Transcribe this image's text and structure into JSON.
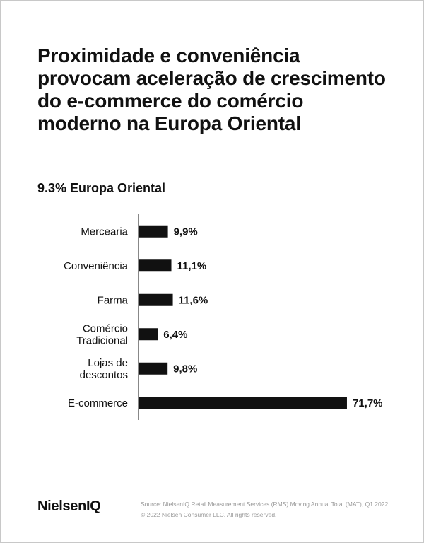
{
  "title": "Proximidade e conveniência provocam aceleração de crescimento do e-commerce do comércio moderno na Europa Oriental",
  "subtitle": "9.3% Europa Oriental",
  "chart_data": {
    "type": "bar",
    "orientation": "horizontal",
    "categories": [
      [
        "Mercearia"
      ],
      [
        "Conveniência"
      ],
      [
        "Farma"
      ],
      [
        "Comércio",
        "Tradicional"
      ],
      [
        "Lojas de",
        "descontos"
      ],
      [
        "E-commerce"
      ]
    ],
    "values": [
      9.9,
      11.1,
      11.6,
      6.4,
      9.8,
      71.7
    ],
    "value_labels": [
      "9,9%",
      "11,1%",
      "11,6%",
      "6,4%",
      "9,8%",
      "71,7%"
    ],
    "xlim": [
      0,
      100
    ],
    "bar_color": "#111111"
  },
  "footer": {
    "logo": "NielsenIQ",
    "source_line1": "Source: NielsenIQ Retail Measurement Services (RMS) Moving Annual Total (MAT), Q1 2022",
    "source_line2": "© 2022 Nielsen Consumer LLC. All rights reserved."
  }
}
